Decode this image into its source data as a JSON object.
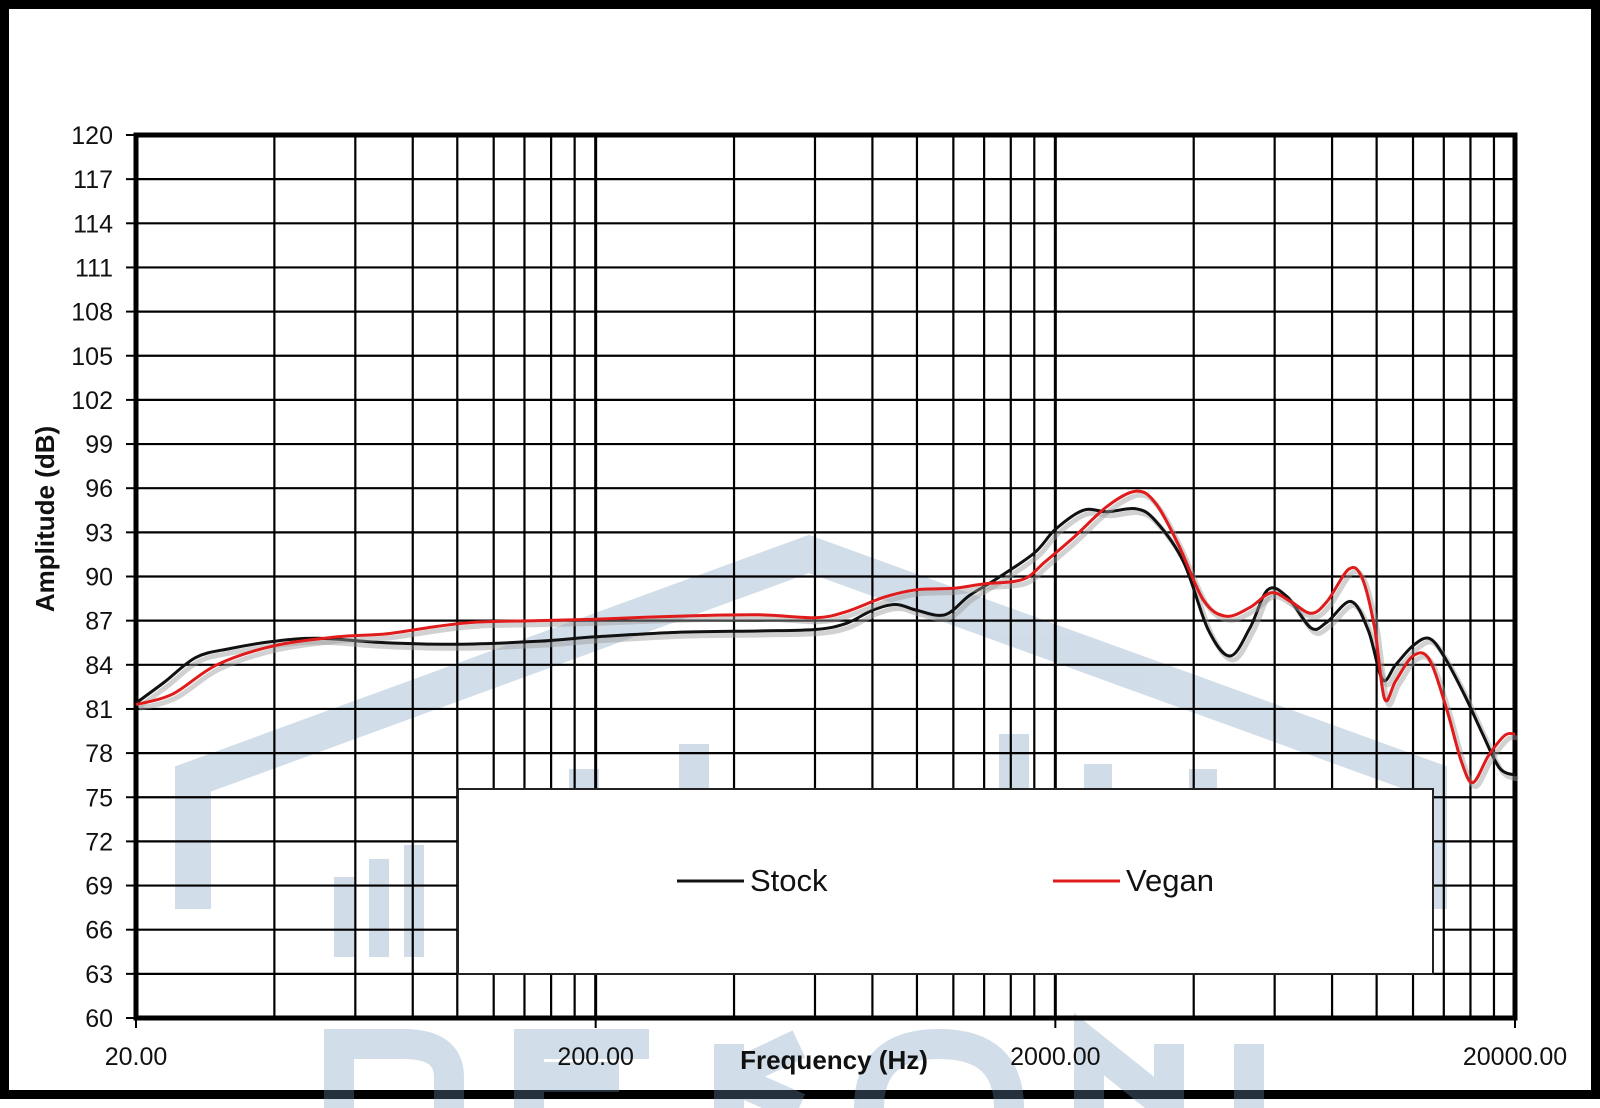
{
  "chart_data": {
    "type": "line",
    "title": "",
    "xlabel": "Frequency (Hz)",
    "ylabel": "Amplitude (dB)",
    "x_scale": "log",
    "xlim": [
      20,
      20000
    ],
    "ylim": [
      60,
      120
    ],
    "x_tick_labels": [
      "20.00",
      "200.00",
      "2000.00",
      "20000.00"
    ],
    "x_tick_values": [
      20,
      200,
      2000,
      20000
    ],
    "y_ticks": [
      120,
      117,
      114,
      111,
      108,
      105,
      102,
      99,
      96,
      93,
      90,
      87,
      84,
      81,
      78,
      75,
      72,
      69,
      66,
      63,
      60
    ],
    "grid": true,
    "legend_position": "bottom-center",
    "series": [
      {
        "name": "Stock",
        "color": "#111111",
        "points": [
          [
            20,
            81.4
          ],
          [
            23,
            82.8
          ],
          [
            27,
            84.5
          ],
          [
            32,
            85.1
          ],
          [
            40,
            85.6
          ],
          [
            50,
            85.8
          ],
          [
            70,
            85.5
          ],
          [
            100,
            85.4
          ],
          [
            150,
            85.6
          ],
          [
            200,
            85.9
          ],
          [
            300,
            86.2
          ],
          [
            450,
            86.3
          ],
          [
            600,
            86.4
          ],
          [
            700,
            86.8
          ],
          [
            800,
            87.7
          ],
          [
            900,
            88.1
          ],
          [
            1000,
            87.7
          ],
          [
            1150,
            87.4
          ],
          [
            1300,
            88.7
          ],
          [
            1500,
            89.9
          ],
          [
            1800,
            91.6
          ],
          [
            2000,
            93.2
          ],
          [
            2300,
            94.5
          ],
          [
            2600,
            94.4
          ],
          [
            3000,
            94.6
          ],
          [
            3300,
            93.8
          ],
          [
            3800,
            91.0
          ],
          [
            4300,
            86.4
          ],
          [
            4800,
            84.6
          ],
          [
            5300,
            86.5
          ],
          [
            5800,
            89.1
          ],
          [
            6400,
            88.6
          ],
          [
            7200,
            86.5
          ],
          [
            7800,
            86.9
          ],
          [
            8800,
            88.3
          ],
          [
            9600,
            86.3
          ],
          [
            10300,
            83.0
          ],
          [
            11000,
            84.0
          ],
          [
            12000,
            85.3
          ],
          [
            13000,
            85.8
          ],
          [
            14000,
            84.6
          ],
          [
            15500,
            82.0
          ],
          [
            17000,
            79.3
          ],
          [
            18500,
            77.0
          ],
          [
            20000,
            76.5
          ]
        ]
      },
      {
        "name": "Vegan",
        "color": "#e01b1b",
        "points": [
          [
            20,
            81.3
          ],
          [
            24,
            82.0
          ],
          [
            30,
            84.0
          ],
          [
            40,
            85.3
          ],
          [
            55,
            85.9
          ],
          [
            70,
            86.1
          ],
          [
            90,
            86.6
          ],
          [
            110,
            86.9
          ],
          [
            150,
            87.0
          ],
          [
            200,
            87.1
          ],
          [
            300,
            87.3
          ],
          [
            450,
            87.4
          ],
          [
            600,
            87.2
          ],
          [
            700,
            87.6
          ],
          [
            850,
            88.6
          ],
          [
            1000,
            89.1
          ],
          [
            1200,
            89.2
          ],
          [
            1400,
            89.5
          ],
          [
            1700,
            89.8
          ],
          [
            1900,
            91.0
          ],
          [
            2200,
            92.7
          ],
          [
            2600,
            94.8
          ],
          [
            3000,
            95.8
          ],
          [
            3300,
            95.0
          ],
          [
            3700,
            92.2
          ],
          [
            4200,
            88.4
          ],
          [
            4700,
            87.3
          ],
          [
            5300,
            87.9
          ],
          [
            5900,
            88.9
          ],
          [
            6500,
            88.3
          ],
          [
            7200,
            87.5
          ],
          [
            7800,
            88.3
          ],
          [
            8700,
            90.5
          ],
          [
            9300,
            89.9
          ],
          [
            9900,
            86.5
          ],
          [
            10400,
            81.7
          ],
          [
            11000,
            82.9
          ],
          [
            12000,
            84.6
          ],
          [
            13000,
            84.4
          ],
          [
            14200,
            81.0
          ],
          [
            15300,
            77.4
          ],
          [
            16200,
            76.0
          ],
          [
            17500,
            77.8
          ],
          [
            19000,
            79.2
          ],
          [
            20000,
            79.3
          ]
        ]
      }
    ]
  }
}
